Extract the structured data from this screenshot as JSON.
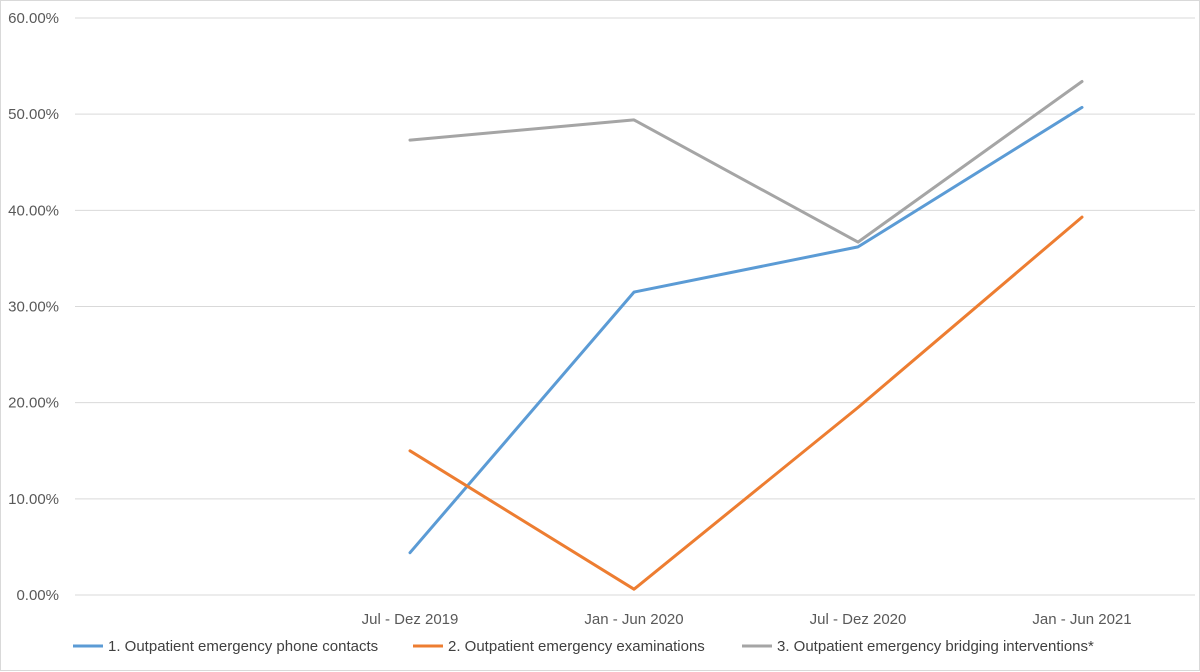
{
  "chart_data": {
    "type": "line",
    "categories": [
      "Jul - Dez 2019",
      "Jan - Jun 2020",
      "Jul - Dez 2020",
      "Jan - Jun 2021"
    ],
    "ylim": [
      0,
      60
    ],
    "y_ticks": [
      "0.00%",
      "10.00%",
      "20.00%",
      "30.00%",
      "40.00%",
      "50.00%",
      "60.00%"
    ],
    "grid": "horizontal",
    "legend_position": "bottom",
    "series": [
      {
        "name": "1. Outpatient emergency phone contacts",
        "color": "#5b9bd5",
        "values": [
          4.4,
          31.5,
          36.2,
          50.7
        ]
      },
      {
        "name": "2. Outpatient emergency examinations",
        "color": "#ed7d31",
        "values": [
          15.0,
          0.6,
          19.5,
          39.3
        ]
      },
      {
        "name": "3. Outpatient emergency bridging interventions*",
        "color": "#a5a5a5",
        "values": [
          47.3,
          49.4,
          36.7,
          53.4
        ]
      }
    ]
  }
}
